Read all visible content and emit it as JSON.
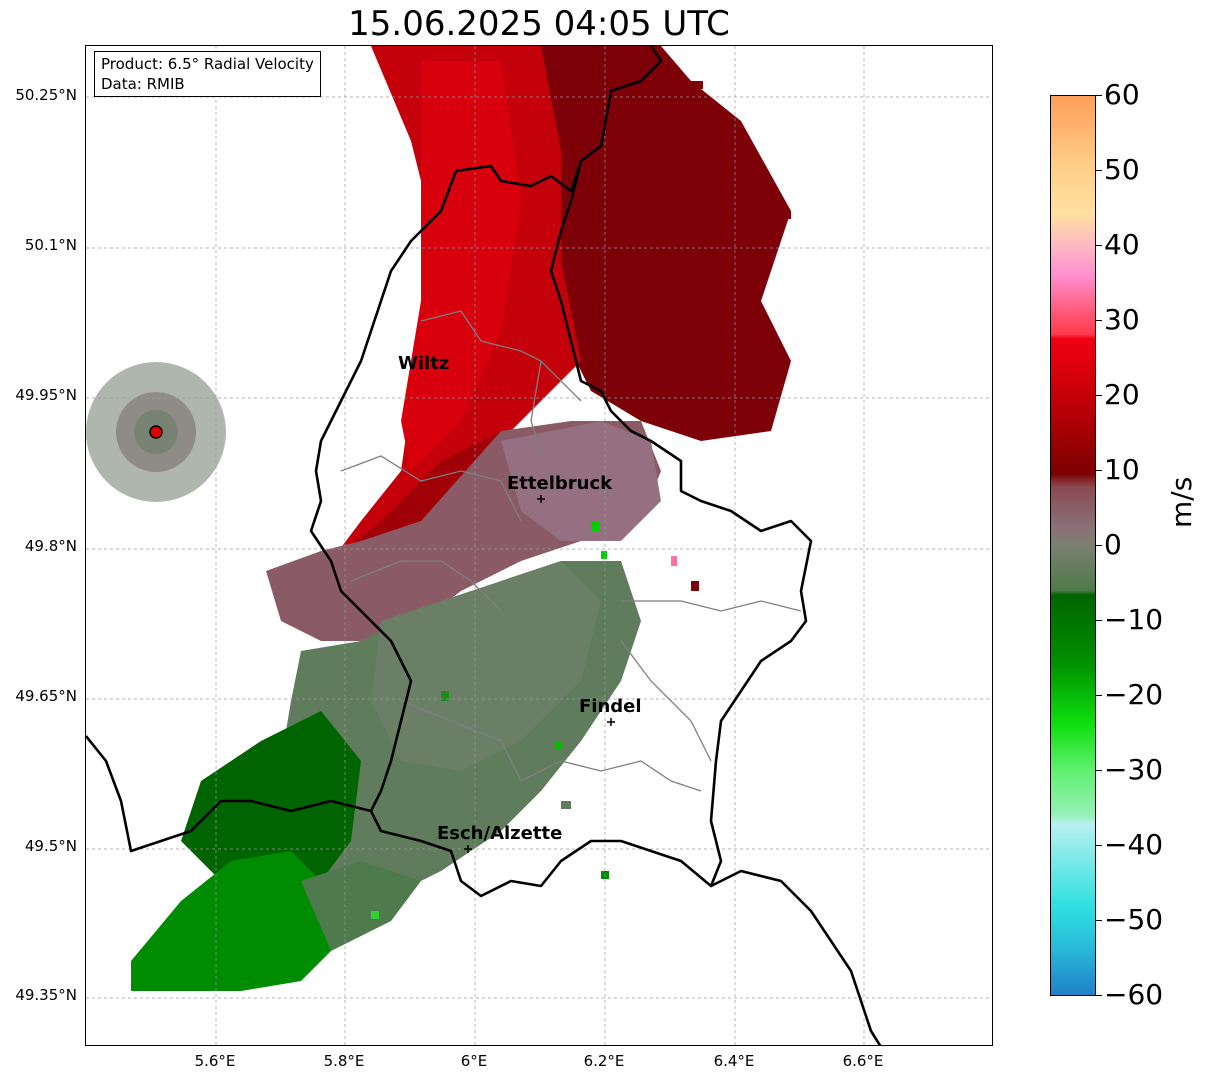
{
  "title": "15.06.2025 04:05 UTC",
  "info": {
    "product": "Product: 6.5° Radial Velocity",
    "data": "Data: RMIB"
  },
  "y_ticks": [
    "50.25°N",
    "50.1°N",
    "49.95°N",
    "49.8°N",
    "49.65°N",
    "49.5°N",
    "49.35°N"
  ],
  "x_ticks": [
    "5.6°E",
    "5.8°E",
    "6°E",
    "6.2°E",
    "6.4°E",
    "6.6°E"
  ],
  "cities": {
    "wiltz": "Wiltz",
    "ettelbruck": "Ettelbruck",
    "findel": "Findel",
    "esch": "Esch/Alzette"
  },
  "colorbar": {
    "label": "m/s",
    "ticks": [
      "60",
      "50",
      "40",
      "30",
      "20",
      "10",
      "0",
      "−10",
      "−20",
      "−30",
      "−40",
      "−50",
      "−60"
    ],
    "range": [
      -60,
      60
    ]
  },
  "colors": {
    "outbound_strong": "#d0000a",
    "outbound": "#8b0000",
    "near_zero_pos": "#8a5a66",
    "near_zero_neg": "#5f7d5c",
    "inbound": "#006400",
    "inbound_strong": "#008c00",
    "radar_site": "#e00000"
  }
}
